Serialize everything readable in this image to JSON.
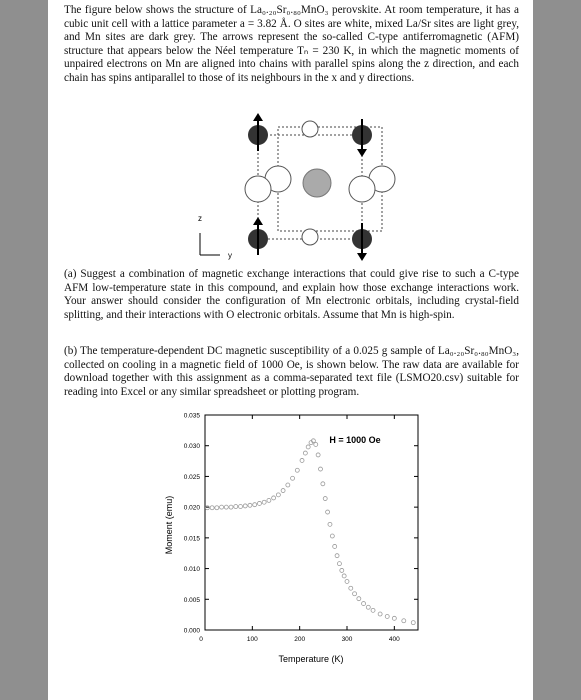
{
  "paragraphs": [
    "The figure below shows the structure of La₀.₂₀Sr₀.₈₀MnO₃ perovskite. At room temperature, it has a cubic unit cell with a lattice parameter a = 3.82 Å. O sites are white, mixed La/Sr sites are light grey, and Mn sites are dark grey. The arrows represent the so-called C-type antiferromagnetic (AFM) structure that appears below the Néel temperature Tₙ = 230 K, in which the magnetic moments of unpaired electrons on Mn are aligned into chains with parallel spins along the z direction, and each chain has spins antiparallel to those of its neighbours in the x and y directions.",
    "(a) Suggest a combination of magnetic exchange interactions that could give rise to such a C-type AFM low-temperature state in this compound, and explain how those exchange interactions work. Your answer should consider the configuration of Mn electronic orbitals, including crystal-field splitting, and their interactions with O electronic orbitals. Assume that Mn is high-spin.",
    "(b) The temperature-dependent DC magnetic susceptibility of a 0.025 g sample of La₀.₂₀Sr₀.₈₀MnO₃, collected on cooling in a magnetic field of 1000 Oe, is shown below. The raw data are available for download together with this assignment as a comma-separated text file (LSMO20.csv) suitable for reading into Excel or any similar spreadsheet or plotting program."
  ],
  "figure": {
    "axis_z": "z",
    "axis_y": "y"
  },
  "chart_data": {
    "type": "scatter",
    "xlabel": "Temperature (K)",
    "ylabel": "Moment (emu)",
    "annotation": "H = 1000 Oe",
    "xlim": [
      0,
      450
    ],
    "ylim": [
      0,
      0.035
    ],
    "xticks": [
      0,
      100,
      200,
      300,
      400
    ],
    "yticks": [
      {
        "value": 0,
        "label": "0.000"
      },
      0.005,
      {
        "value": 0.01,
        "label": "0.010"
      },
      0.015,
      {
        "value": 0.02,
        "label": "0.020"
      },
      0.025,
      {
        "value": 0.03,
        "label": "0.030"
      },
      0.035
    ],
    "x": [
      5,
      15,
      25,
      35,
      45,
      55,
      65,
      75,
      85,
      95,
      105,
      115,
      125,
      135,
      145,
      155,
      165,
      175,
      185,
      195,
      205,
      212,
      218,
      224,
      229,
      234,
      239,
      244,
      249,
      254,
      259,
      264,
      269,
      274,
      279,
      284,
      289,
      294,
      300,
      308,
      316,
      325,
      335,
      345,
      355,
      370,
      385,
      400,
      420,
      440
    ],
    "series": [
      {
        "color": "#9a9a9a",
        "values": [
          0.0199,
          0.0199,
          0.0199,
          0.02,
          0.02,
          0.02,
          0.0201,
          0.0201,
          0.0202,
          0.0203,
          0.0204,
          0.0206,
          0.0208,
          0.0211,
          0.0215,
          0.022,
          0.0227,
          0.0236,
          0.0247,
          0.026,
          0.0276,
          0.0288,
          0.0298,
          0.0305,
          0.0308,
          0.0302,
          0.0285,
          0.0262,
          0.0238,
          0.0214,
          0.0192,
          0.0172,
          0.0153,
          0.0136,
          0.0121,
          0.0108,
          0.0097,
          0.0088,
          0.0079,
          0.0068,
          0.0059,
          0.0051,
          0.0043,
          0.0037,
          0.0032,
          0.0026,
          0.0022,
          0.0019,
          0.0015,
          0.0012
        ]
      }
    ]
  }
}
